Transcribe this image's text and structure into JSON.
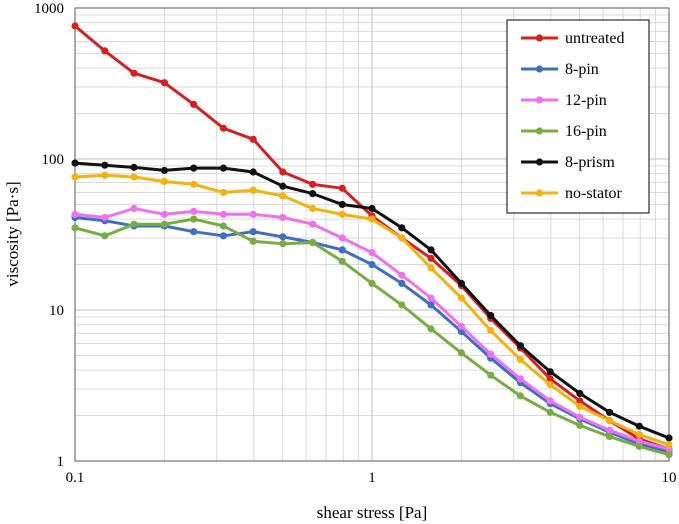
{
  "chart_data": {
    "type": "line",
    "title": "",
    "xlabel": "shear stress [Pa]",
    "ylabel": "viscosity [Pa·s]",
    "xscale": "log",
    "yscale": "log",
    "xlim": [
      0.1,
      10
    ],
    "ylim": [
      1,
      1000
    ],
    "grid": true,
    "legend_position": "top-right",
    "x_ticks": [
      {
        "value": 0.1,
        "label": "0.1"
      },
      {
        "value": 1,
        "label": "1"
      },
      {
        "value": 10,
        "label": "10"
      }
    ],
    "y_ticks": [
      {
        "value": 1,
        "label": "1"
      },
      {
        "value": 10,
        "label": "10"
      },
      {
        "value": 100,
        "label": "100"
      },
      {
        "value": 1000,
        "label": "1000"
      }
    ],
    "x": [
      0.1,
      0.126,
      0.158,
      0.2,
      0.251,
      0.316,
      0.398,
      0.501,
      0.631,
      0.794,
      1,
      1.26,
      1.58,
      2,
      2.51,
      3.16,
      3.98,
      5.01,
      6.31,
      7.94,
      10
    ],
    "series": [
      {
        "name": "untreated",
        "color": "#d42020",
        "values": [
          760,
          520,
          370,
          320,
          230,
          160,
          135,
          82,
          68,
          64,
          42,
          30,
          22,
          14.5,
          8.8,
          5.6,
          3.5,
          2.5,
          1.85,
          1.4,
          1.2
        ]
      },
      {
        "name": "8-pin",
        "color": "#3f6fbf",
        "values": [
          41,
          39,
          36,
          36,
          33,
          31,
          33,
          30.5,
          28,
          25,
          20,
          15,
          10.8,
          7.2,
          4.8,
          3.3,
          2.4,
          1.9,
          1.55,
          1.3,
          1.15
        ]
      },
      {
        "name": "12-pin",
        "color": "#ee72ee",
        "values": [
          43,
          41,
          47,
          43,
          45,
          43,
          43,
          41,
          37,
          30,
          24,
          17,
          12,
          7.8,
          5.1,
          3.5,
          2.5,
          1.95,
          1.6,
          1.35,
          1.2
        ]
      },
      {
        "name": "16-pin",
        "color": "#78ad44",
        "values": [
          35,
          31,
          37,
          37,
          40,
          36,
          28.5,
          27.5,
          28,
          21,
          15,
          10.8,
          7.5,
          5.2,
          3.7,
          2.7,
          2.1,
          1.72,
          1.45,
          1.25,
          1.1
        ]
      },
      {
        "name": "8-prism",
        "color": "#111111",
        "values": [
          94,
          91,
          88,
          84,
          87,
          87,
          82,
          66,
          59,
          50,
          47,
          35,
          25,
          15,
          9.2,
          5.8,
          3.9,
          2.8,
          2.1,
          1.7,
          1.42
        ]
      },
      {
        "name": "no-stator",
        "color": "#f2b20f",
        "values": [
          76,
          78,
          76,
          71,
          68,
          60,
          62,
          57,
          47,
          43,
          40,
          30,
          19,
          12,
          7.3,
          4.7,
          3.2,
          2.3,
          1.85,
          1.5,
          1.28
        ]
      }
    ]
  }
}
